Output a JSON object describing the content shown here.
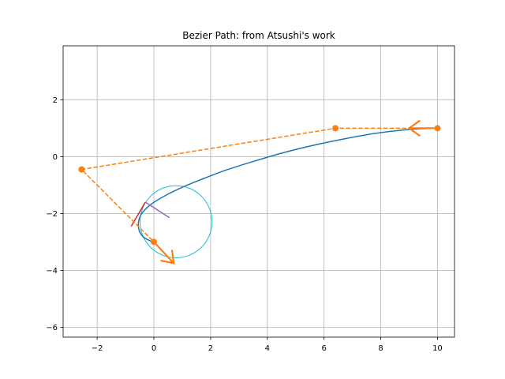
{
  "chart_data": {
    "type": "line",
    "title": "Bezier Path: from Atsushi's work",
    "xlabel": "",
    "ylabel": "",
    "xlim": [
      -3.2,
      10.6
    ],
    "ylim": [
      -6.35,
      3.9
    ],
    "xticks": [
      -2,
      0,
      2,
      4,
      6,
      8,
      10
    ],
    "yticks": [
      -6,
      -4,
      -2,
      0,
      2
    ],
    "xtick_labels": [
      "−2",
      "0",
      "2",
      "4",
      "6",
      "8",
      "10"
    ],
    "ytick_labels": [
      "−6",
      "−4",
      "−2",
      "0",
      "2"
    ],
    "grid": true,
    "colors": {
      "path": "#1f77b4",
      "control": "#ff7f0e",
      "circle": "#17becf",
      "tangent": "#d62728",
      "normal": "#9467bd"
    },
    "series": [
      {
        "kind": "bezier_curve",
        "x": [
          10.0,
          8.93,
          7.81,
          6.68,
          5.58,
          4.53,
          3.53,
          2.61,
          1.78,
          1.04,
          0.42,
          -0.09,
          -0.44,
          -0.55,
          -0.4,
          -0.04,
          0.0
        ],
        "y": [
          1.0,
          0.95,
          0.82,
          0.62,
          0.39,
          0.13,
          -0.16,
          -0.45,
          -0.76,
          -1.06,
          -1.36,
          -1.67,
          -2.02,
          -2.43,
          -2.8,
          -3.0,
          -3.0
        ]
      },
      {
        "kind": "control_polygon",
        "x": [
          10.0,
          6.4,
          -2.55,
          0.0
        ],
        "y": [
          1.0,
          1.0,
          -0.45,
          -3.0
        ]
      },
      {
        "kind": "curvature_circle",
        "center": [
          0.78,
          -2.29
        ],
        "radius": 1.27
      },
      {
        "kind": "tangent",
        "x": [
          -0.8,
          -0.3
        ],
        "y": [
          -2.45,
          -1.6
        ]
      },
      {
        "kind": "normal",
        "x": [
          -0.3,
          0.55
        ],
        "y": [
          -1.6,
          -2.15
        ]
      },
      {
        "kind": "start_arrow",
        "x": 10.0,
        "y": 1.0,
        "dx": -1.0,
        "dy": 0.0
      },
      {
        "kind": "end_arrow",
        "x": 0.0,
        "y": -3.0,
        "dx": 0.7,
        "dy": -0.75
      }
    ]
  }
}
